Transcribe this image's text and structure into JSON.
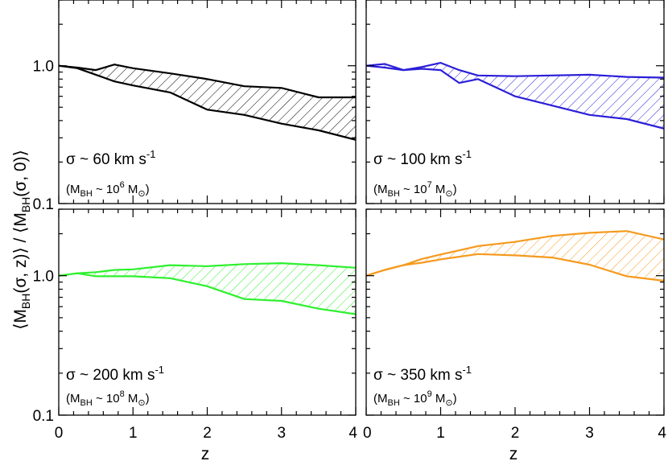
{
  "chart_data": {
    "type": "area",
    "layout": "2x2 panels, shared axes",
    "xlabel": "z",
    "ylabel": "⟨M_BH(σ, z)⟩ / ⟨M_BH(σ, 0)⟩",
    "ylabel_parts": {
      "open": "⟨M",
      "sub1": "BH",
      "mid": "(σ, z)⟩ / ⟨M",
      "sub2": "BH",
      "close": "(σ, 0)⟩"
    },
    "x_scale": "linear",
    "y_scale": "log",
    "xlim": [
      0,
      4
    ],
    "ylim": [
      0.1,
      3.0
    ],
    "x_ticks": [
      0,
      1,
      2,
      3,
      4
    ],
    "x_tick_labels": [
      "0",
      "1",
      "2",
      "3",
      "4"
    ],
    "y_ticks": [
      0.1,
      1.0
    ],
    "y_tick_labels": [
      "0.1",
      "1.0"
    ],
    "grid": false,
    "fill": "hatched band between upper and lower curves",
    "panels": [
      {
        "sigma_label": "σ ~ 60 km s",
        "sigma_exp": "-1",
        "mass_pre": "(M",
        "mass_sub": "BH",
        "mass_mid": " ~ 10",
        "mass_exp": "6",
        "mass_post": " M",
        "color": "#000000",
        "z": [
          0,
          0.25,
          0.5,
          0.75,
          1,
          1.5,
          2,
          2.5,
          3,
          3.5,
          4
        ],
        "upper": [
          1.0,
          0.97,
          0.93,
          1.02,
          0.96,
          0.88,
          0.8,
          0.71,
          0.69,
          0.59,
          0.59
        ],
        "lower": [
          1.0,
          0.96,
          0.86,
          0.77,
          0.72,
          0.64,
          0.48,
          0.44,
          0.38,
          0.34,
          0.29
        ]
      },
      {
        "sigma_label": "σ ~ 100 km s",
        "sigma_exp": "-1",
        "mass_pre": "(M",
        "mass_sub": "BH",
        "mass_mid": " ~ 10",
        "mass_exp": "7",
        "mass_post": " M",
        "color": "#2b1fd8",
        "z": [
          0,
          0.25,
          0.5,
          0.75,
          1,
          1.25,
          1.5,
          2,
          3,
          3.5,
          4
        ],
        "upper": [
          1.0,
          1.03,
          0.93,
          0.98,
          1.05,
          0.93,
          0.85,
          0.84,
          0.86,
          0.83,
          0.82
        ],
        "lower": [
          1.0,
          0.97,
          0.93,
          0.95,
          0.93,
          0.75,
          0.8,
          0.6,
          0.44,
          0.41,
          0.35
        ]
      },
      {
        "sigma_label": "σ ~ 200 km s",
        "sigma_exp": "-1",
        "mass_pre": "(M",
        "mass_sub": "BH",
        "mass_mid": " ~ 10",
        "mass_exp": "8",
        "mass_post": " M",
        "color": "#2ef02e",
        "z": [
          0,
          0.25,
          0.5,
          0.75,
          1,
          1.5,
          2,
          2.5,
          3,
          3.5,
          4
        ],
        "upper": [
          1.0,
          1.04,
          1.06,
          1.1,
          1.11,
          1.19,
          1.17,
          1.21,
          1.23,
          1.19,
          1.14
        ],
        "lower": [
          1.0,
          1.04,
          0.99,
          0.99,
          0.99,
          0.96,
          0.84,
          0.68,
          0.66,
          0.58,
          0.53
        ]
      },
      {
        "sigma_label": "σ ~ 350 km s",
        "sigma_exp": "-1",
        "mass_pre": "(M",
        "mass_sub": "BH",
        "mass_mid": " ~ 10",
        "mass_exp": "9",
        "mass_post": " M",
        "color": "#f59a1e",
        "z": [
          0,
          0.25,
          0.5,
          0.75,
          1,
          1.5,
          2,
          2.5,
          3,
          3.5,
          4
        ],
        "upper": [
          1.0,
          1.1,
          1.19,
          1.32,
          1.42,
          1.63,
          1.75,
          1.93,
          2.03,
          2.09,
          1.82
        ],
        "lower": [
          1.0,
          1.1,
          1.19,
          1.24,
          1.31,
          1.43,
          1.4,
          1.35,
          1.2,
          0.99,
          0.92
        ]
      }
    ]
  }
}
